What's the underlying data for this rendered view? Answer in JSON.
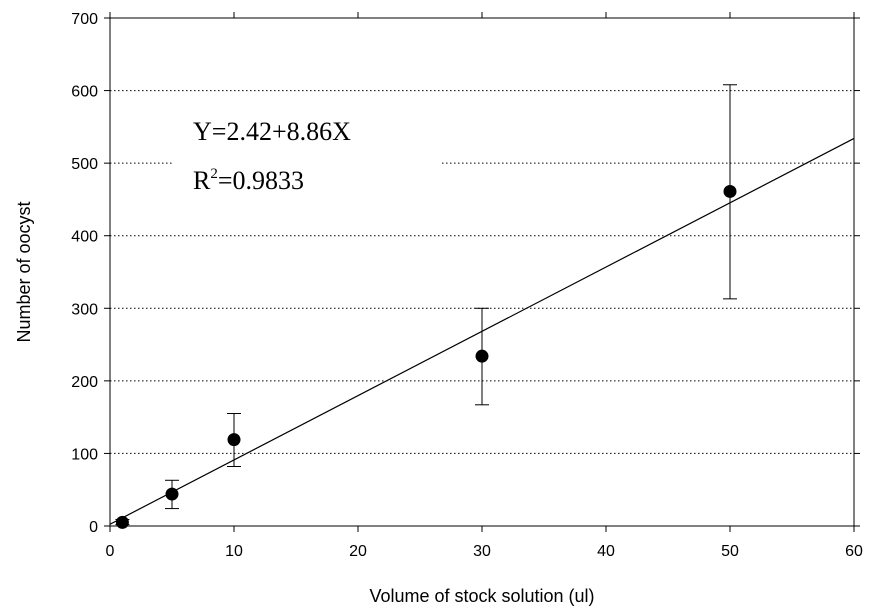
{
  "chart_data": {
    "type": "scatter",
    "title": "",
    "xlabel": "Volume of stock solution (ul)",
    "ylabel": "Number of oocyst",
    "xlim": [
      0,
      60
    ],
    "ylim": [
      0,
      700
    ],
    "xticks": [
      "0",
      "10",
      "20",
      "30",
      "40",
      "50",
      "60"
    ],
    "yticks": [
      "0",
      "100",
      "200",
      "300",
      "400",
      "500",
      "600",
      "700"
    ],
    "grid": "horizontal-dotted",
    "series": [
      {
        "x": [
          1,
          5,
          10,
          30,
          50
        ],
        "y": [
          5,
          44,
          119,
          234,
          461
        ],
        "error_low": [
          2,
          24,
          82,
          167,
          313
        ],
        "error_high": [
          9,
          63,
          155,
          300,
          608
        ]
      }
    ],
    "fit_line": {
      "intercept": 2.42,
      "slope": 8.86,
      "x_range": [
        0,
        60
      ]
    },
    "annotation": {
      "equation": "Y=2.42+8.86X",
      "r2_prefix": "R",
      "r2_superscript": "2",
      "r2_value": "=0.9833"
    }
  }
}
